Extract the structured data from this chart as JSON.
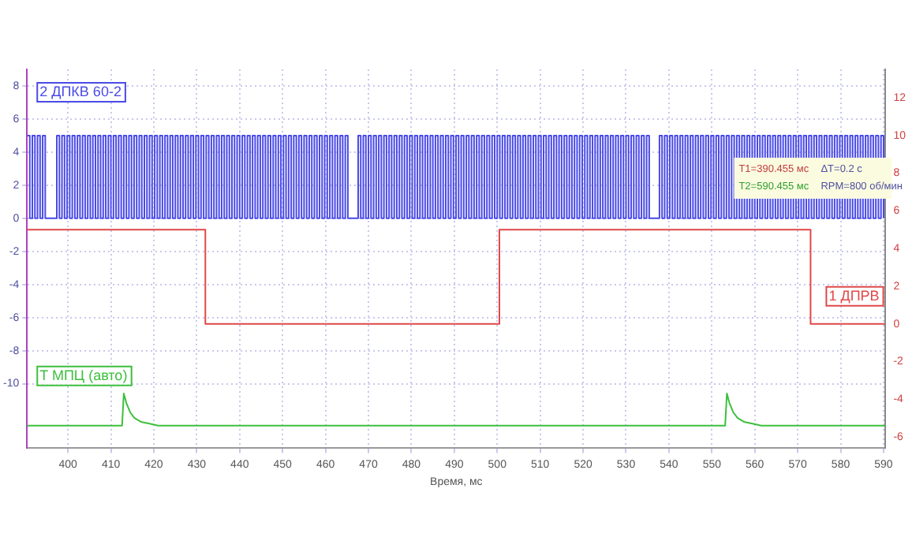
{
  "chart_data": {
    "type": "step",
    "xlabel": "Время, мс",
    "xlim": [
      390.455,
      590.455
    ],
    "xticks": [
      400,
      410,
      420,
      430,
      440,
      450,
      460,
      470,
      480,
      490,
      500,
      510,
      520,
      530,
      540,
      550,
      560,
      570,
      580,
      590
    ],
    "ylim": [
      -13.9,
      9
    ],
    "yticks": [
      -10,
      -8,
      -6,
      -4,
      -2,
      0,
      2,
      4,
      6,
      8
    ],
    "y2lim": [
      -6.6,
      13.5
    ],
    "y2ticks": [
      -6,
      -4,
      -2,
      0,
      2,
      4,
      6,
      8,
      10,
      12
    ],
    "grid": true,
    "legend": false,
    "marker": "none",
    "line_style": "solid",
    "annotations": [
      "T1=390.455 мс",
      "ΔT=0.2 с",
      "T2=590.455 мс",
      "RPM=800 об/мин"
    ],
    "series": [
      {
        "name": "2 ДПКВ 60-2",
        "color": "#4a4ae8",
        "x": [
          390.5,
          391.1,
          391.7,
          392.3,
          392.9,
          393.5,
          394.1,
          394.7,
          397.4,
          398,
          398.6,
          399.2,
          399.8,
          400.4,
          401,
          401.6,
          402.2,
          402.8,
          403.4,
          404,
          404.6,
          405.2,
          405.8,
          406.4,
          407,
          407.6,
          408.2,
          408.8,
          409.4,
          410,
          410.6,
          411.2,
          411.8,
          412.4,
          413,
          413.6,
          414.2,
          414.8,
          415.4,
          416,
          416.6,
          417.2,
          417.8,
          418.4,
          419,
          419.6,
          420.2,
          420.8,
          421.4,
          422,
          422.6,
          423.2,
          423.8,
          424.4,
          425,
          425.6,
          426.2,
          426.8,
          427.4,
          428,
          428.6,
          429.2,
          429.8,
          430.4,
          431,
          431.6,
          432.2,
          432.8,
          433.4,
          434,
          434.6,
          435.2,
          435.8,
          436.4,
          437,
          437.6,
          438.2,
          438.8,
          439.4,
          440,
          440.6,
          441.2,
          441.8,
          442.4,
          443,
          443.6,
          444.2,
          444.8,
          445.4,
          446,
          446.6,
          447.2,
          447.8,
          448.4,
          449,
          449.6,
          450.2,
          450.8,
          451.4,
          452,
          452.6,
          453.2,
          453.8,
          454.4,
          455,
          455.6,
          456.2,
          456.8,
          457.4,
          458,
          458.6,
          459.2,
          459.8,
          460.4,
          461,
          461.6,
          462.2,
          462.8,
          463.4,
          464,
          464.6,
          465.2,
          467.6,
          468.2,
          468.8,
          469.4,
          470,
          470.6,
          471.2,
          471.8,
          472.4,
          473,
          473.6,
          474.2,
          474.8,
          475.4,
          476,
          476.6,
          477.2,
          477.8,
          478.4,
          479,
          479.6,
          480.2,
          480.8,
          481.4,
          482,
          482.6,
          483.2,
          483.8,
          484.4,
          485,
          485.6,
          486.2,
          486.8,
          487.4,
          488,
          488.6,
          489.2,
          489.8,
          490.4,
          491,
          491.6,
          492.2,
          492.8,
          493.4,
          494,
          494.6,
          495.2,
          495.8,
          496.4,
          497,
          497.6,
          498.2,
          498.8,
          499.4,
          500,
          500.6,
          501.2,
          501.8,
          502.4,
          503,
          503.6,
          504.2,
          504.8,
          505.4,
          506,
          506.6,
          507.2,
          507.8,
          508.4,
          509,
          509.6,
          510.2,
          510.8,
          511.4,
          512,
          512.6,
          513.2,
          513.8,
          514.4,
          515,
          515.6,
          516.2,
          516.8,
          517.4,
          518,
          518.6,
          519.2,
          519.8,
          520.4,
          521,
          521.6,
          522.2,
          522.8,
          523.4,
          524,
          524.6,
          525.2,
          525.8,
          526.4,
          527,
          527.6,
          528.2,
          528.8,
          529.4,
          530,
          530.6,
          531.2,
          531.8,
          532.4,
          533,
          533.6,
          534.2,
          534.8,
          535.4,
          537.8,
          538.4,
          539,
          539.6,
          540.2,
          540.8,
          541.4,
          542,
          542.6,
          543.2,
          543.8,
          544.4,
          545,
          545.6,
          546.2,
          546.8,
          547.4,
          548,
          548.6,
          549.2,
          549.8,
          550.4,
          551,
          551.6,
          552.2,
          552.8,
          553.4,
          554,
          554.6,
          555.2,
          555.8,
          556.4,
          557,
          557.6,
          558.2,
          558.8,
          559.4,
          560,
          560.6,
          561.2,
          561.8,
          562.4,
          563,
          563.6,
          564.2,
          564.8,
          565.4,
          566,
          566.6,
          567.2,
          567.8,
          568.4,
          569,
          569.6,
          570.2,
          570.8,
          571.4,
          572,
          572.6,
          573.2,
          573.8,
          574.4,
          575,
          575.6,
          576.2,
          576.8,
          577.4,
          578,
          578.6,
          579.2,
          579.8,
          580.4,
          581,
          581.6,
          582.2,
          582.8,
          583.4,
          584,
          584.6,
          585.2,
          585.8,
          586.4,
          587,
          587.6,
          588.2,
          588.8,
          589.4,
          590
        ],
        "values": [
          5,
          0,
          5,
          0,
          5,
          0,
          5,
          0,
          5,
          0,
          5,
          0,
          5,
          0,
          5,
          0,
          5,
          0,
          5,
          0,
          5,
          0,
          5,
          0,
          5,
          0,
          5,
          0,
          5,
          0,
          5,
          0,
          5,
          0,
          5,
          0,
          5,
          0,
          5,
          0,
          5,
          0,
          5,
          0,
          5,
          0,
          5,
          0,
          5,
          0,
          5,
          0,
          5,
          0,
          5,
          0,
          5,
          0,
          5,
          0,
          5,
          0,
          5,
          0,
          5,
          0,
          5,
          0,
          5,
          0,
          5,
          0,
          5,
          0,
          5,
          0,
          5,
          0,
          5,
          0,
          5,
          0,
          5,
          0,
          5,
          0,
          5,
          0,
          5,
          0,
          5,
          0,
          5,
          0,
          5,
          0,
          5,
          0,
          5,
          0,
          5,
          0,
          5,
          0,
          5,
          0,
          5,
          0,
          5,
          0,
          5,
          0,
          5,
          0,
          5,
          0,
          5,
          0,
          5,
          0,
          5,
          0,
          5,
          0,
          5,
          0,
          5,
          0,
          5,
          0,
          5,
          0,
          5,
          0,
          5,
          0,
          5,
          0,
          5,
          0,
          5,
          0,
          5,
          0,
          5,
          0,
          5,
          0,
          5,
          0,
          5,
          0,
          5,
          0,
          5,
          0,
          5,
          0,
          5,
          0,
          5,
          0,
          5,
          0,
          5,
          0,
          5,
          0,
          5,
          0,
          5,
          0,
          5,
          0,
          5,
          0,
          5,
          0,
          5,
          0,
          5,
          0,
          5,
          0,
          5,
          0,
          5,
          0,
          5,
          0,
          5,
          0,
          5,
          0,
          5,
          0,
          5,
          0,
          5,
          0,
          5,
          0,
          5,
          0,
          5,
          0,
          5,
          0,
          5,
          0,
          5,
          0,
          5,
          0,
          5,
          0,
          5,
          0,
          5,
          0,
          5,
          0,
          5,
          0,
          5,
          0,
          5,
          0,
          5,
          0,
          5,
          0,
          5,
          0,
          5,
          0,
          5,
          0,
          5,
          0,
          5,
          0,
          5,
          0,
          5,
          0,
          5,
          0,
          5,
          0,
          5,
          0,
          5,
          0,
          5,
          0,
          5,
          0,
          5,
          0,
          5,
          0,
          5,
          0,
          5,
          0,
          5,
          0,
          5,
          0,
          5,
          0,
          5,
          0,
          5,
          0,
          5,
          0,
          5,
          0,
          5,
          0,
          5,
          0,
          5,
          0,
          5,
          0,
          5,
          0,
          5,
          0,
          5,
          0,
          5,
          0,
          5,
          0,
          5,
          0,
          5,
          0,
          5,
          0,
          5,
          0,
          5,
          0,
          5,
          0,
          5,
          0,
          5,
          0,
          5,
          0,
          5,
          0,
          5,
          0,
          5,
          0,
          5,
          0
        ]
      },
      {
        "name": "1 ДПРВ",
        "color": "#e04848",
        "axis": "y2",
        "x": [
          390.5,
          432,
          500.5,
          573,
          590.4
        ],
        "values": [
          5,
          0,
          5,
          0,
          0
        ]
      },
      {
        "name": "T МПЦ (авто)",
        "color": "#3cc03c",
        "axis": "y2",
        "x": [
          390.5,
          412.6,
          413,
          413.6,
          414.5,
          415.5,
          417,
          419,
          421,
          553.1,
          553.5,
          554.1,
          555,
          556,
          557.5,
          559.5,
          561.5,
          590.4
        ],
        "values": [
          -5.4,
          -5.4,
          -3.7,
          -4.2,
          -4.7,
          -5,
          -5.2,
          -5.3,
          -5.4,
          -5.4,
          -3.7,
          -4.2,
          -4.7,
          -5,
          -5.2,
          -5.3,
          -5.4,
          -5.4
        ],
        "type": "line"
      }
    ]
  }
}
